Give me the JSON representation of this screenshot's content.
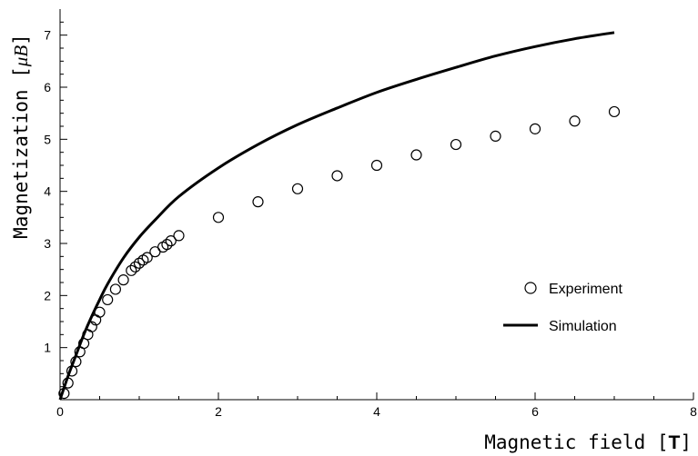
{
  "chart_data": {
    "type": "scatter",
    "title": "",
    "xlabel": "Magnetic field",
    "xunit": "T",
    "ylabel": "Magnetization",
    "yunit": "μB",
    "xlim": [
      0,
      8
    ],
    "ylim": [
      0,
      7.5
    ],
    "xticks": [
      0,
      2,
      4,
      6,
      8
    ],
    "yticks": [
      1,
      2,
      3,
      4,
      5,
      6,
      7
    ],
    "grid": false,
    "legend_position": "right",
    "series": [
      {
        "name": "Experiment",
        "kind": "scatter",
        "marker": "open-circle",
        "color": "#000000",
        "x": [
          0.05,
          0.1,
          0.15,
          0.2,
          0.25,
          0.3,
          0.35,
          0.4,
          0.45,
          0.5,
          0.6,
          0.7,
          0.8,
          0.9,
          0.95,
          1.0,
          1.05,
          1.1,
          1.2,
          1.3,
          1.35,
          1.4,
          1.5,
          2.0,
          2.5,
          3.0,
          3.5,
          4.0,
          4.5,
          5.0,
          5.5,
          6.0,
          6.5,
          7.0
        ],
        "y": [
          0.12,
          0.32,
          0.55,
          0.73,
          0.92,
          1.08,
          1.25,
          1.4,
          1.53,
          1.68,
          1.92,
          2.12,
          2.3,
          2.48,
          2.55,
          2.62,
          2.68,
          2.73,
          2.84,
          2.93,
          2.98,
          3.05,
          3.15,
          3.5,
          3.8,
          4.05,
          4.3,
          4.5,
          4.7,
          4.9,
          5.06,
          5.2,
          5.35,
          5.53
        ]
      },
      {
        "name": "Simulation",
        "kind": "line",
        "color": "#000000",
        "x": [
          0,
          0.1,
          0.2,
          0.3,
          0.4,
          0.5,
          0.6,
          0.8,
          1.0,
          1.2,
          1.5,
          2.0,
          2.5,
          3.0,
          3.5,
          4.0,
          4.5,
          5.0,
          5.5,
          6.0,
          6.5,
          7.0
        ],
        "y": [
          0,
          0.45,
          0.85,
          1.25,
          1.6,
          1.92,
          2.22,
          2.72,
          3.12,
          3.45,
          3.9,
          4.45,
          4.9,
          5.28,
          5.6,
          5.9,
          6.15,
          6.38,
          6.6,
          6.78,
          6.93,
          7.05
        ]
      }
    ]
  }
}
